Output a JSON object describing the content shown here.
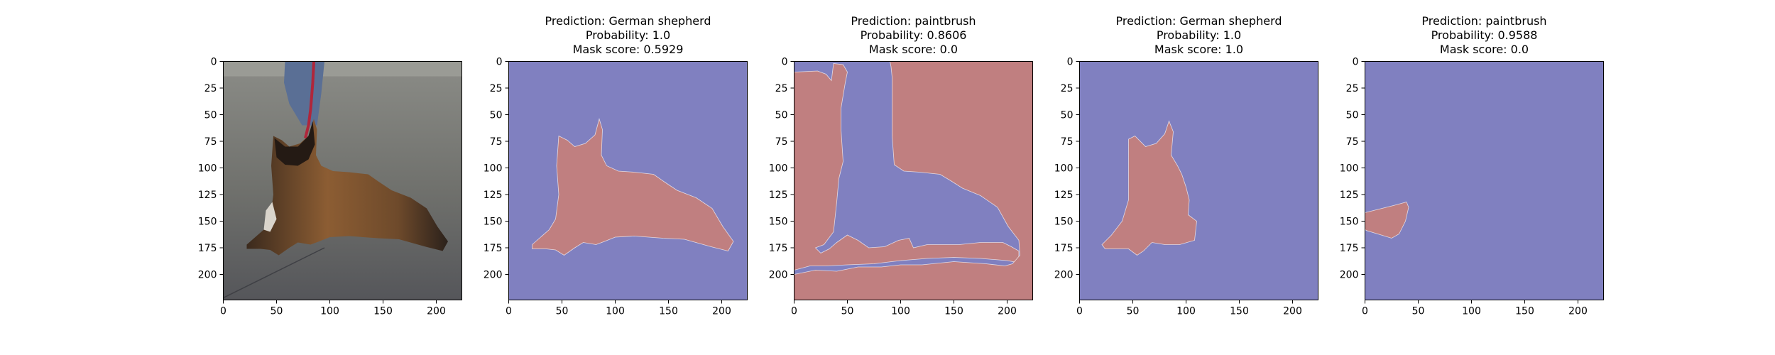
{
  "chart_data": [
    {
      "type": "image",
      "image_kind": "photo",
      "title_lines": [],
      "x_ticks": [
        0,
        50,
        100,
        150,
        200
      ],
      "y_ticks": [
        0,
        25,
        50,
        75,
        100,
        125,
        150,
        175,
        200
      ],
      "xlim": [
        0,
        224
      ],
      "ylim": [
        224,
        0
      ]
    },
    {
      "type": "image",
      "image_kind": "mask",
      "title_lines": [
        "Prediction: German shepherd",
        "Probability: 1.0",
        "Mask score: 0.5929"
      ],
      "x_ticks": [
        0,
        50,
        100,
        150,
        200
      ],
      "y_ticks": [
        0,
        25,
        50,
        75,
        100,
        125,
        150,
        175,
        200
      ],
      "xlim": [
        0,
        224
      ],
      "ylim": [
        224,
        0
      ],
      "background_color": "#8080c0",
      "mask_color": "#c07f80",
      "regions": [
        [
          [
            22,
            172
          ],
          [
            30,
            165
          ],
          [
            38,
            158
          ],
          [
            44,
            148
          ],
          [
            47,
            125
          ],
          [
            45,
            98
          ],
          [
            47,
            70
          ],
          [
            55,
            74
          ],
          [
            62,
            80
          ],
          [
            72,
            77
          ],
          [
            81,
            69
          ],
          [
            85,
            54
          ],
          [
            88,
            64
          ],
          [
            87,
            88
          ],
          [
            92,
            98
          ],
          [
            103,
            103
          ],
          [
            118,
            104
          ],
          [
            136,
            106
          ],
          [
            146,
            113
          ],
          [
            158,
            121
          ],
          [
            176,
            128
          ],
          [
            191,
            138
          ],
          [
            201,
            155
          ],
          [
            211,
            169
          ],
          [
            206,
            178
          ],
          [
            190,
            174
          ],
          [
            165,
            167
          ],
          [
            145,
            166
          ],
          [
            118,
            164
          ],
          [
            100,
            165
          ],
          [
            90,
            169
          ],
          [
            82,
            172
          ],
          [
            70,
            170
          ],
          [
            62,
            175
          ],
          [
            52,
            182
          ],
          [
            44,
            177
          ],
          [
            35,
            176
          ],
          [
            22,
            176
          ]
        ]
      ]
    },
    {
      "type": "image",
      "image_kind": "mask",
      "title_lines": [
        "Prediction: paintbrush",
        "Probability: 0.8606",
        "Mask score: 0.0"
      ],
      "x_ticks": [
        0,
        50,
        100,
        150,
        200
      ],
      "y_ticks": [
        0,
        25,
        50,
        75,
        100,
        125,
        150,
        175,
        200
      ],
      "xlim": [
        0,
        224
      ],
      "ylim": [
        224,
        0
      ],
      "background_color": "#8080c0",
      "mask_color": "#c07f80",
      "regions": [
        [
          [
            0,
            10
          ],
          [
            22,
            9
          ],
          [
            30,
            12
          ],
          [
            35,
            18
          ],
          [
            37,
            2
          ],
          [
            46,
            3
          ],
          [
            50,
            10
          ],
          [
            48,
            20
          ],
          [
            44,
            44
          ],
          [
            44,
            64
          ],
          [
            46,
            94
          ],
          [
            42,
            110
          ],
          [
            40,
            132
          ],
          [
            37,
            160
          ],
          [
            28,
            172
          ],
          [
            20,
            175
          ],
          [
            25,
            180
          ],
          [
            33,
            176
          ],
          [
            40,
            170
          ],
          [
            50,
            163
          ],
          [
            60,
            168
          ],
          [
            70,
            175
          ],
          [
            85,
            174
          ],
          [
            98,
            168
          ],
          [
            108,
            166
          ],
          [
            112,
            175
          ],
          [
            125,
            172
          ],
          [
            140,
            172
          ],
          [
            155,
            172
          ],
          [
            175,
            170
          ],
          [
            196,
            170
          ],
          [
            204,
            174
          ],
          [
            211,
            178
          ],
          [
            211,
            189
          ],
          [
            200,
            187
          ],
          [
            175,
            185
          ],
          [
            150,
            184
          ],
          [
            125,
            185
          ],
          [
            100,
            187
          ],
          [
            75,
            190
          ],
          [
            50,
            191
          ],
          [
            30,
            192
          ],
          [
            15,
            192
          ],
          [
            0,
            196
          ]
        ],
        [
          [
            90,
            0
          ],
          [
            224,
            0
          ],
          [
            224,
            225
          ],
          [
            0,
            225
          ],
          [
            0,
            200
          ],
          [
            20,
            196
          ],
          [
            40,
            197
          ],
          [
            60,
            193
          ],
          [
            82,
            193
          ],
          [
            100,
            191
          ],
          [
            120,
            191
          ],
          [
            150,
            188
          ],
          [
            180,
            190
          ],
          [
            198,
            192
          ],
          [
            205,
            190
          ],
          [
            212,
            182
          ],
          [
            211,
            168
          ],
          [
            201,
            155
          ],
          [
            191,
            137
          ],
          [
            175,
            126
          ],
          [
            158,
            119
          ],
          [
            147,
            112
          ],
          [
            137,
            106
          ],
          [
            118,
            104
          ],
          [
            103,
            103
          ],
          [
            94,
            97
          ],
          [
            92,
            70
          ],
          [
            92,
            40
          ],
          [
            92,
            15
          ],
          [
            91,
            5
          ]
        ]
      ]
    },
    {
      "type": "image",
      "image_kind": "mask",
      "title_lines": [
        "Prediction: German shepherd",
        "Probability: 1.0",
        "Mask score: 1.0"
      ],
      "x_ticks": [
        0,
        50,
        100,
        150,
        200
      ],
      "y_ticks": [
        0,
        25,
        50,
        75,
        100,
        125,
        150,
        175,
        200
      ],
      "xlim": [
        0,
        224
      ],
      "ylim": [
        224,
        0
      ],
      "background_color": "#8080c0",
      "mask_color": "#c07f80",
      "regions": [
        [
          [
            21,
            172
          ],
          [
            30,
            163
          ],
          [
            40,
            150
          ],
          [
            46,
            130
          ],
          [
            46,
            100
          ],
          [
            46,
            73
          ],
          [
            52,
            70
          ],
          [
            62,
            80
          ],
          [
            72,
            77
          ],
          [
            80,
            68
          ],
          [
            84,
            56
          ],
          [
            88,
            66
          ],
          [
            86,
            88
          ],
          [
            92,
            98
          ],
          [
            96,
            106
          ],
          [
            100,
            118
          ],
          [
            103,
            130
          ],
          [
            102,
            144
          ],
          [
            110,
            150
          ],
          [
            108,
            168
          ],
          [
            94,
            172
          ],
          [
            80,
            172
          ],
          [
            68,
            170
          ],
          [
            60,
            178
          ],
          [
            54,
            182
          ],
          [
            46,
            176
          ],
          [
            36,
            176
          ],
          [
            24,
            176
          ]
        ]
      ]
    },
    {
      "type": "image",
      "image_kind": "mask",
      "title_lines": [
        "Prediction: paintbrush",
        "Probability: 0.9588",
        "Mask score: 0.0"
      ],
      "x_ticks": [
        0,
        50,
        100,
        150,
        200
      ],
      "y_ticks": [
        0,
        25,
        50,
        75,
        100,
        125,
        150,
        175,
        200
      ],
      "xlim": [
        0,
        224
      ],
      "ylim": [
        224,
        0
      ],
      "background_color": "#8080c0",
      "mask_color": "#c07f80",
      "regions": [
        [
          [
            0,
            142
          ],
          [
            12,
            139
          ],
          [
            28,
            135
          ],
          [
            39,
            132
          ],
          [
            41,
            137
          ],
          [
            38,
            150
          ],
          [
            32,
            162
          ],
          [
            25,
            166
          ],
          [
            12,
            162
          ],
          [
            2,
            159
          ],
          [
            0,
            158
          ]
        ]
      ]
    }
  ]
}
